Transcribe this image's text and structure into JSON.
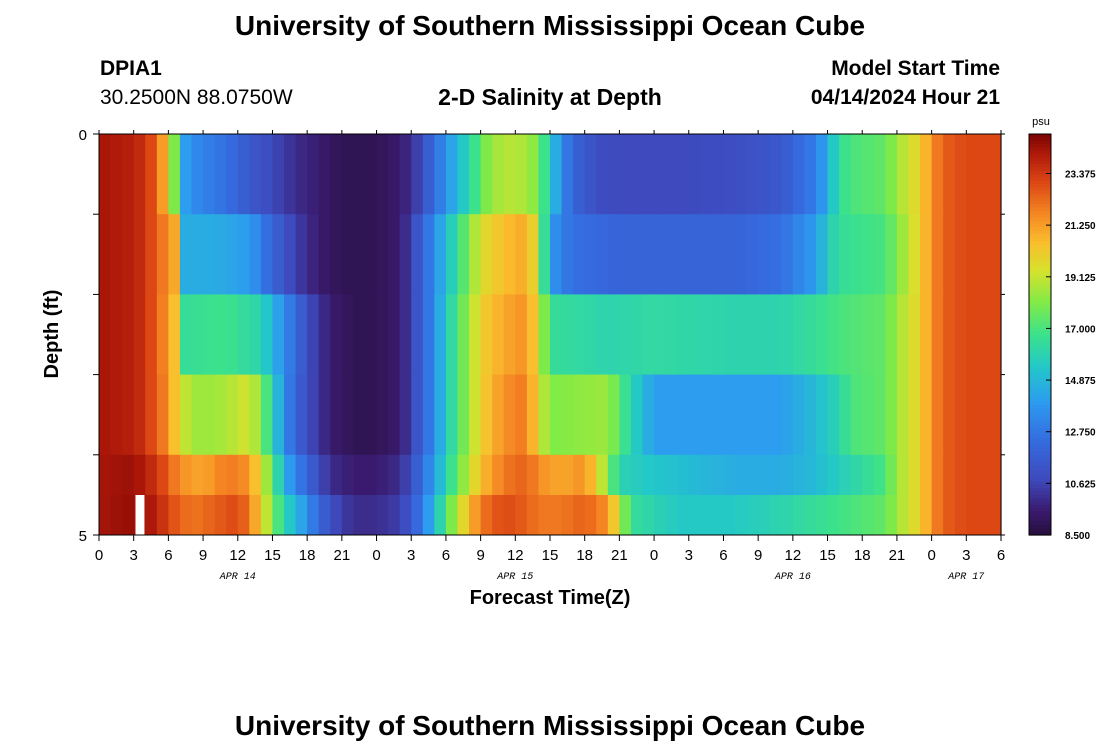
{
  "header": {
    "title": "University of Southern Mississippi Ocean Cube",
    "station_id": "DPIA1",
    "coordinates": "30.2500N  88.0750W",
    "subtitle": "2-D Salinity at Depth",
    "start_label": "Model Start Time",
    "start_value": "04/14/2024 Hour 21"
  },
  "footer": {
    "title": "University of Southern Mississippi Ocean Cube"
  },
  "chart_data": {
    "type": "heatmap",
    "title": "2-D Salinity at Depth",
    "xlabel": "Forecast Time(Z)",
    "ylabel": "Depth (ft)",
    "x_hours": [
      0,
      78
    ],
    "x_tick_labels": [
      "0",
      "3",
      "6",
      "9",
      "12",
      "15",
      "18",
      "21",
      "0",
      "3",
      "6",
      "9",
      "12",
      "15",
      "18",
      "21",
      "0",
      "3",
      "6",
      "9",
      "12",
      "15",
      "18",
      "21",
      "0",
      "3",
      "6"
    ],
    "date_labels": [
      {
        "label": "APR 14",
        "hour": 12
      },
      {
        "label": "APR 15",
        "hour": 36
      },
      {
        "label": "APR 16",
        "hour": 60
      },
      {
        "label": "APR 17",
        "hour": 75
      }
    ],
    "y_range": [
      0,
      5
    ],
    "y_tick_labels": [
      "0",
      "5"
    ],
    "colorbar": {
      "unit": "psu",
      "min": 8.5,
      "max": 25.0,
      "tick_labels": [
        "23.375",
        "21.250",
        "19.125",
        "17.000",
        "14.875",
        "12.750",
        "10.625",
        "8.500"
      ]
    },
    "layers": [
      {
        "depth": "0-1",
        "segments": [
          [
            0,
            24.3
          ],
          [
            3,
            24
          ],
          [
            4,
            23.5
          ],
          [
            5,
            22.5
          ],
          [
            6,
            20
          ],
          [
            6.5,
            18
          ],
          [
            7,
            14.5
          ],
          [
            8,
            13.5
          ],
          [
            11,
            12.5
          ],
          [
            13,
            11.5
          ],
          [
            15,
            10.8
          ],
          [
            17,
            10
          ],
          [
            19,
            9.5
          ],
          [
            21,
            9
          ],
          [
            24,
            9
          ],
          [
            26,
            9.5
          ],
          [
            27,
            10
          ],
          [
            28,
            11
          ],
          [
            29,
            12.5
          ],
          [
            30,
            13.5
          ],
          [
            31,
            15
          ],
          [
            32,
            16
          ],
          [
            33,
            17.5
          ],
          [
            34,
            18.5
          ],
          [
            36,
            19
          ],
          [
            38,
            18
          ],
          [
            39,
            15.5
          ],
          [
            40,
            13.5
          ],
          [
            41,
            12
          ],
          [
            43,
            11
          ],
          [
            45,
            10.8
          ],
          [
            50,
            10.8
          ],
          [
            55,
            11
          ],
          [
            59,
            11.5
          ],
          [
            62,
            13
          ],
          [
            63,
            14.5
          ],
          [
            64,
            16.5
          ],
          [
            65,
            17
          ],
          [
            68,
            17.5
          ],
          [
            69,
            18.5
          ],
          [
            71,
            20
          ],
          [
            72,
            21.5
          ],
          [
            73,
            22.5
          ],
          [
            75,
            23
          ],
          [
            78,
            23
          ]
        ]
      },
      {
        "depth": "1-2",
        "segments": [
          [
            0,
            24.3
          ],
          [
            3,
            24
          ],
          [
            4,
            23.5
          ],
          [
            5,
            22.5
          ],
          [
            6.5,
            21
          ],
          [
            7,
            19
          ],
          [
            7.5,
            14.5
          ],
          [
            10,
            14.5
          ],
          [
            13,
            14
          ],
          [
            15,
            12
          ],
          [
            17,
            10.5
          ],
          [
            19,
            9.5
          ],
          [
            21,
            9
          ],
          [
            24,
            9
          ],
          [
            26,
            9.5
          ],
          [
            27,
            10.5
          ],
          [
            28,
            12
          ],
          [
            29,
            13.5
          ],
          [
            30,
            15
          ],
          [
            31,
            16.5
          ],
          [
            32,
            18
          ],
          [
            33,
            19.5
          ],
          [
            35,
            20.5
          ],
          [
            37,
            21
          ],
          [
            38,
            19
          ],
          [
            39,
            14
          ],
          [
            40,
            13
          ],
          [
            41,
            12.5
          ],
          [
            45,
            12
          ],
          [
            55,
            12
          ],
          [
            59,
            12.5
          ],
          [
            62,
            14
          ],
          [
            63,
            15.5
          ],
          [
            64,
            16.5
          ],
          [
            68,
            17
          ],
          [
            69,
            18
          ],
          [
            71,
            20
          ],
          [
            72,
            21.5
          ],
          [
            73,
            22.5
          ],
          [
            75,
            23
          ],
          [
            78,
            23
          ]
        ]
      },
      {
        "depth": "2-3",
        "segments": [
          [
            0,
            24.3
          ],
          [
            3,
            24
          ],
          [
            4,
            23.5
          ],
          [
            5,
            22.5
          ],
          [
            6.5,
            20.5
          ],
          [
            7.5,
            16.5
          ],
          [
            11,
            16.8
          ],
          [
            14,
            16
          ],
          [
            16,
            13.5
          ],
          [
            18,
            11
          ],
          [
            20,
            9.5
          ],
          [
            22,
            9
          ],
          [
            24,
            9
          ],
          [
            26,
            9.5
          ],
          [
            27,
            10.5
          ],
          [
            28,
            12
          ],
          [
            29,
            13.5
          ],
          [
            30,
            15.5
          ],
          [
            31,
            17
          ],
          [
            32,
            18.5
          ],
          [
            33,
            20
          ],
          [
            35,
            21
          ],
          [
            37,
            21.5
          ],
          [
            38,
            19.5
          ],
          [
            39,
            16.5
          ],
          [
            44,
            16
          ],
          [
            48,
            16.3
          ],
          [
            50,
            16.2
          ],
          [
            55,
            16
          ],
          [
            59,
            16
          ],
          [
            62,
            16.5
          ],
          [
            64,
            17
          ],
          [
            68,
            17.5
          ],
          [
            69,
            18.5
          ],
          [
            71,
            20
          ],
          [
            72,
            21.5
          ],
          [
            73,
            22.5
          ],
          [
            75,
            23
          ],
          [
            78,
            23
          ]
        ]
      },
      {
        "depth": "3-4",
        "segments": [
          [
            0,
            24.3
          ],
          [
            3,
            24
          ],
          [
            4,
            23.5
          ],
          [
            5,
            22.5
          ],
          [
            6,
            21.5
          ],
          [
            7,
            19.5
          ],
          [
            8,
            18.5
          ],
          [
            10,
            18.5
          ],
          [
            12,
            19
          ],
          [
            13,
            19.5
          ],
          [
            14,
            18
          ],
          [
            15,
            16
          ],
          [
            16,
            13.5
          ],
          [
            17,
            12
          ],
          [
            18,
            11
          ],
          [
            20,
            9.5
          ],
          [
            22,
            9
          ],
          [
            24,
            9
          ],
          [
            26,
            9.5
          ],
          [
            27,
            10.5
          ],
          [
            28,
            12
          ],
          [
            29,
            13.5
          ],
          [
            30,
            15.5
          ],
          [
            31,
            17
          ],
          [
            32,
            18.5
          ],
          [
            33,
            20
          ],
          [
            35,
            21.5
          ],
          [
            37,
            22
          ],
          [
            38,
            19.5
          ],
          [
            39,
            18
          ],
          [
            44,
            18.5
          ],
          [
            46,
            16
          ],
          [
            48,
            14
          ],
          [
            55,
            14
          ],
          [
            59,
            14
          ],
          [
            62,
            15
          ],
          [
            64,
            16
          ],
          [
            65,
            17
          ],
          [
            68,
            17.5
          ],
          [
            69,
            18.5
          ],
          [
            71,
            20
          ],
          [
            72,
            21.5
          ],
          [
            73,
            22.5
          ],
          [
            75,
            23
          ],
          [
            78,
            23
          ]
        ]
      },
      {
        "depth": "4-5",
        "segments": [
          [
            0,
            24.3
          ],
          [
            3,
            24.5
          ],
          [
            4,
            24
          ],
          [
            5,
            23.5
          ],
          [
            6,
            22.5
          ],
          [
            7,
            21.5
          ],
          [
            9,
            21
          ],
          [
            11,
            22
          ],
          [
            13,
            21.5
          ],
          [
            14,
            19.5
          ],
          [
            15,
            17.5
          ],
          [
            16,
            14.5
          ],
          [
            18,
            12
          ],
          [
            20,
            10
          ],
          [
            22,
            9.5
          ],
          [
            24,
            9.5
          ],
          [
            26,
            10
          ],
          [
            27,
            11
          ],
          [
            28,
            12.5
          ],
          [
            29,
            14
          ],
          [
            30,
            16
          ],
          [
            31,
            17.5
          ],
          [
            32,
            19
          ],
          [
            33,
            20.5
          ],
          [
            35,
            22
          ],
          [
            37,
            22.5
          ],
          [
            38,
            21.5
          ],
          [
            40,
            21
          ],
          [
            42,
            21.5
          ],
          [
            43,
            20
          ],
          [
            44,
            18
          ],
          [
            45,
            16
          ],
          [
            47,
            15.5
          ],
          [
            55,
            14.5
          ],
          [
            59,
            14.5
          ],
          [
            62,
            15
          ],
          [
            65,
            16
          ],
          [
            68,
            17
          ],
          [
            69,
            18.5
          ],
          [
            71,
            20
          ],
          [
            72,
            21.5
          ],
          [
            73,
            22.5
          ],
          [
            75,
            23
          ],
          [
            78,
            23
          ]
        ]
      },
      {
        "depth": "5",
        "segments": [
          [
            0,
            24.3
          ],
          [
            3,
            24.6
          ],
          [
            4,
            24.4
          ],
          [
            5,
            24
          ],
          [
            6,
            23
          ],
          [
            8,
            22
          ],
          [
            10,
            22.5
          ],
          [
            12,
            23
          ],
          [
            13,
            22
          ],
          [
            14,
            20
          ],
          [
            15,
            18
          ],
          [
            16,
            16
          ],
          [
            17,
            15
          ],
          [
            18,
            13.5
          ],
          [
            20,
            11
          ],
          [
            22,
            10
          ],
          [
            24,
            10
          ],
          [
            26,
            10.5
          ],
          [
            27,
            11.5
          ],
          [
            28,
            13
          ],
          [
            29,
            15
          ],
          [
            30,
            17
          ],
          [
            31,
            19
          ],
          [
            32,
            20.5
          ],
          [
            33,
            22
          ],
          [
            35,
            23
          ],
          [
            37,
            22.5
          ],
          [
            38,
            22
          ],
          [
            40,
            22
          ],
          [
            42,
            22.5
          ],
          [
            44,
            21.5
          ],
          [
            45,
            19
          ],
          [
            46,
            16.5
          ],
          [
            48,
            16
          ],
          [
            50,
            15.5
          ],
          [
            55,
            15.5
          ],
          [
            59,
            16
          ],
          [
            62,
            16.5
          ],
          [
            65,
            17
          ],
          [
            68,
            17.5
          ],
          [
            69,
            18.5
          ],
          [
            71,
            20
          ],
          [
            72,
            21.5
          ],
          [
            73,
            22.5
          ],
          [
            75,
            23
          ],
          [
            78,
            23
          ]
        ]
      }
    ],
    "missing_marker": {
      "hour": 3.5,
      "depth_band": 5
    }
  }
}
